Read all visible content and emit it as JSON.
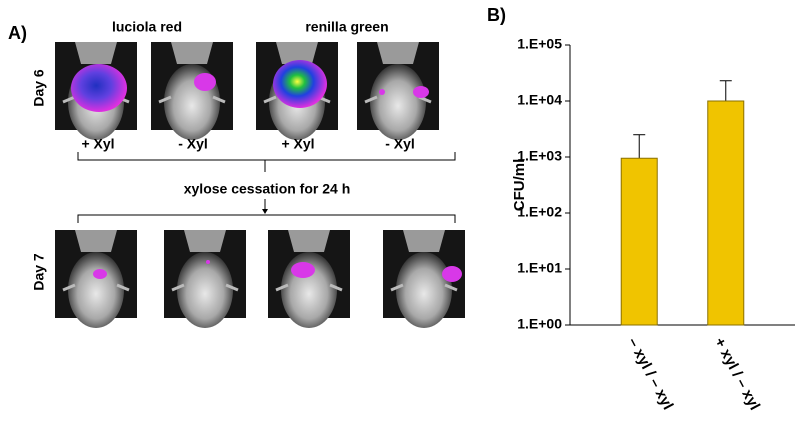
{
  "panel_a": {
    "label": "A)",
    "column_headers": [
      "luciola red",
      "renilla green"
    ],
    "row_labels": [
      "Day 6",
      "Day 7"
    ],
    "image_labels": [
      "+ Xyl",
      "- Xyl",
      "+ Xyl",
      "- Xyl"
    ],
    "note": "xylose cessation for 24 h"
  },
  "chart_data": {
    "type": "bar",
    "panel_label": "B)",
    "y_label": "CFU/ml",
    "categories": [
      "– xyl / – xyl",
      "+ xyl / – xyl"
    ],
    "values": [
      950,
      10000
    ],
    "errors": [
      1550,
      13000
    ],
    "color": "#f0c400",
    "log_scale": true,
    "ylim": [
      1,
      100000
    ],
    "yticks": [
      {
        "value": 1,
        "label": "1.E+00"
      },
      {
        "value": 10,
        "label": "1.E+01"
      },
      {
        "value": 100,
        "label": "1.E+02"
      },
      {
        "value": 1000,
        "label": "1.E+03"
      },
      {
        "value": 10000,
        "label": "1.E+04"
      },
      {
        "value": 100000,
        "label": "1.E+05"
      }
    ]
  }
}
